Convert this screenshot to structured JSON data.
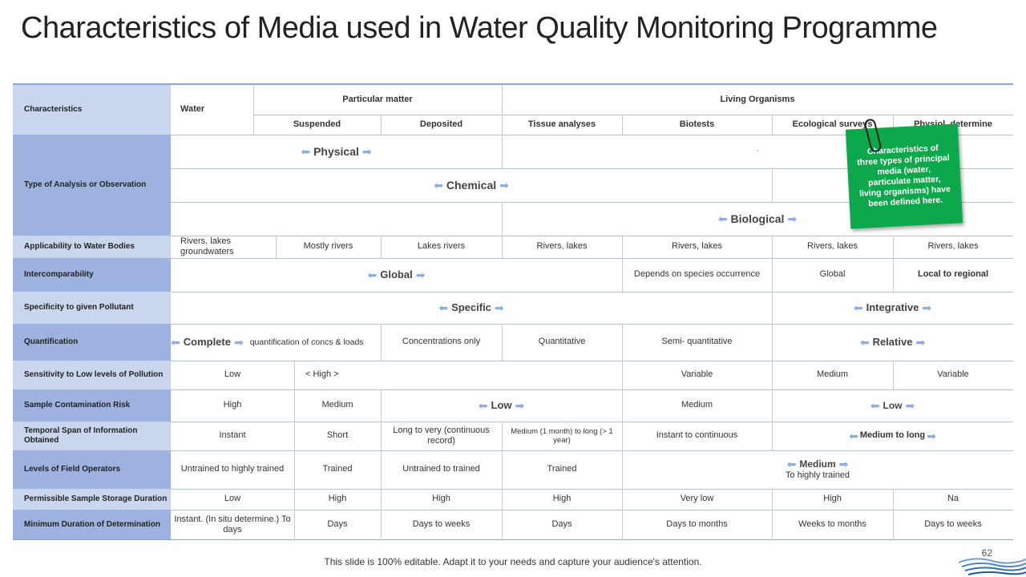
{
  "title": "Characteristics of Media used in Water Quality Monitoring Programme",
  "header": {
    "characteristics": "Characteristics",
    "water": "Water",
    "particulate": "Particular matter",
    "living": "Living Organisms",
    "suspended": "Suspended",
    "deposited": "Deposited",
    "tissue": "Tissue analyses",
    "biotests": "Biotests",
    "ecological": "Ecological surveys",
    "physiol": "Physiol. determine"
  },
  "rows": {
    "type_label": "Type of Analysis or Observation",
    "physical": "Physical",
    "dash": "-",
    "chemical": "Chemical",
    "biological": "Biological",
    "applicability_label": "Applicability to Water Bodies",
    "applicability": [
      "Rivers, lakes groundwaters",
      "Mostly rivers",
      "Lakes rivers",
      "Rivers, lakes",
      "Rivers, lakes",
      "Rivers, lakes",
      "Rivers, lakes"
    ],
    "intercomp_label": "Intercomparability",
    "intercomp_global": "Global",
    "intercomp_depends": "Depends on species occurrence",
    "intercomp_global2": "Global",
    "intercomp_local": "Local to regional",
    "specificity_label": "Specificity to given Pollutant",
    "specific": "Specific",
    "integrative": "Integrative",
    "quant_label": "Quantification",
    "complete": "Complete",
    "complete_sub": "quantification of concs & loads",
    "conc_only": "Concentrations only",
    "quantitative": "Quantitative",
    "semi": "Semi- quantitative",
    "relative": "Relative",
    "sens_label": "Sensitivity to Low levels of Pollution",
    "sens_low": "Low",
    "sens_high": "< High >",
    "sens_var": "Variable",
    "sens_med": "Medium",
    "sens_var2": "Variable",
    "contam_label": "Sample Contamination Risk",
    "contam_high": "High",
    "contam_med": "Medium",
    "contam_low": "Low",
    "contam_med2": "Medium",
    "contam_low2": "Low",
    "temporal_label": "Temporal Span of Information Obtained",
    "temporal": [
      "Instant",
      "Short",
      "Long to very (continuous record)",
      "Medium (1 month) to long (> 1 year)",
      "Instant to continuous"
    ],
    "temporal_med_long": "Medium to long",
    "operators_label": "Levels of Field Operators",
    "operators": [
      "Untrained to highly trained",
      "Trained",
      "Untrained to trained",
      "Trained"
    ],
    "operators_medium": "Medium",
    "operators_sub": "To highly trained",
    "storage_label": "Permissible Sample Storage Duration",
    "storage": [
      "Low",
      "High",
      "High",
      "High",
      "Very low",
      "High",
      "Na"
    ],
    "mindur_label": "Minimum Duration of Determination",
    "mindur": [
      "Instant. (In situ determine.) To days",
      "Days",
      "Days to weeks",
      "Days",
      "Days to months",
      "Weeks to months",
      "Days to weeks"
    ]
  },
  "sticky_note": "Characteristics of three types of principal media (water, particulate matter, living organisms) have been defined here.",
  "footer": "This slide is 100% editable. Adapt it to your needs and capture your audience's attention.",
  "page_number": "62",
  "colors": {
    "label_light": "#c9d6ee",
    "label_dark": "#9db2de",
    "note": "#0ea84c",
    "arrow": "#8eaee0"
  }
}
